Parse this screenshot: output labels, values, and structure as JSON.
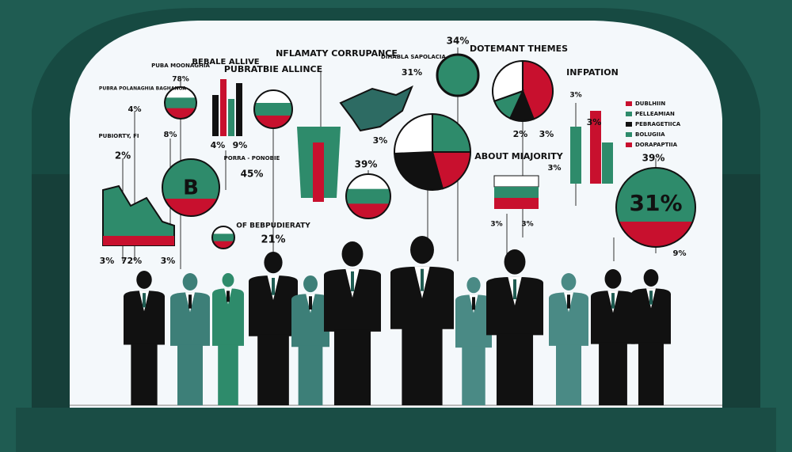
{
  "texts": [
    "PUBA MOONAGHIA",
    "78%",
    "BEBALE ALLIVE",
    "PUBRATBIE ALLINCE",
    "NFLAMATY CORRUPANCE",
    "DIHABLA SAPOLACIA",
    "34%",
    "31%",
    "DOTEMANT THEMES",
    "INFPATION",
    "PUBRA POLANAGHIA BAGHANOA",
    "4%",
    "PUBIORTY, FI",
    "2%",
    "8%",
    "4%",
    "9%",
    "PORRA - PONOBIE",
    "45%",
    "3%",
    "39%",
    "ABOUT MIAJORITY",
    "2%",
    "3%",
    "3%",
    "3%",
    "3%",
    "39%",
    "31%",
    "OF BEBPUDIERATY",
    "21%",
    "3%",
    "72%",
    "3%",
    "3%",
    "3%",
    "9%",
    "B"
  ],
  "legend": [
    {
      "label": "DUBLHIIN"
    },
    {
      "label": "PELLEAMIAN"
    },
    {
      "label": "PEBRAGETIICA"
    },
    {
      "label": "BOLUGIIA"
    },
    {
      "label": "DORAPAPTIIA"
    }
  ]
}
